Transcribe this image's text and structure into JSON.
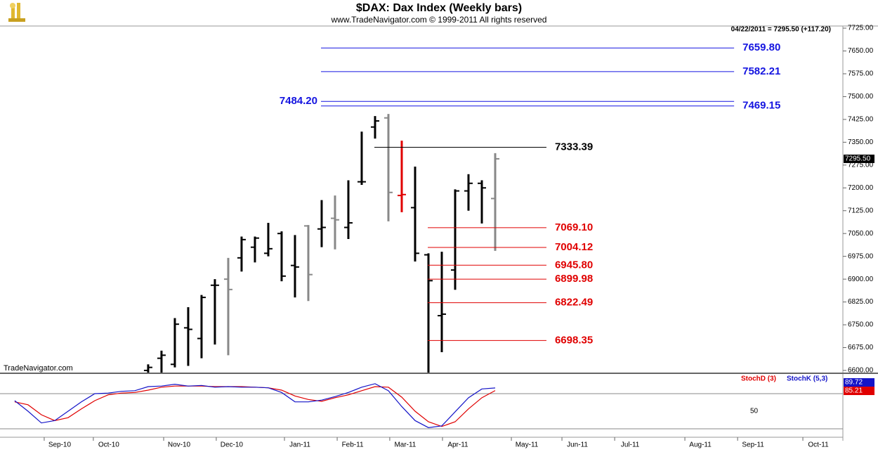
{
  "chart_data": [
    {
      "type": "ohlc",
      "title": "$DAX:  Dax Index  (Weekly bars)",
      "subtitle": "www.TradeNavigator.com © 1999-2011 All rights reserved",
      "info": "04/22/2011 = 7295.50 (+117.20)",
      "watermark": "TradeNavigator.com",
      "xlim": [
        -11.1,
        52.05
      ],
      "ylim": [
        6593,
        7732
      ],
      "yticks": [
        {
          "value": 6600,
          "label": "6600.00"
        },
        {
          "value": 6675,
          "label": "6675.00"
        },
        {
          "value": 6750,
          "label": "6750.00"
        },
        {
          "value": 6825,
          "label": "6825.00"
        },
        {
          "value": 6900,
          "label": "6900.00"
        },
        {
          "value": 6975,
          "label": "6975.00"
        },
        {
          "value": 7050,
          "label": "7050.00"
        },
        {
          "value": 7125,
          "label": "7125.00"
        },
        {
          "value": 7200,
          "label": "7200.00"
        },
        {
          "value": 7275,
          "label": "7275.00"
        },
        {
          "value": 7350,
          "label": "7350.00"
        },
        {
          "value": 7425,
          "label": "7425.00"
        },
        {
          "value": 7500,
          "label": "7500.00"
        },
        {
          "value": 7575,
          "label": "7575.00"
        },
        {
          "value": 7650,
          "label": "7650.00"
        },
        {
          "value": 7725,
          "label": "7725.00"
        }
      ],
      "x": [
        0,
        1,
        2,
        3,
        4,
        5,
        6,
        7,
        8,
        9,
        10,
        11,
        12,
        13,
        14,
        15,
        16,
        17,
        18,
        19,
        20,
        21,
        22,
        23,
        24,
        25,
        26
      ],
      "open": [
        6600,
        6640,
        6620,
        6740,
        6705,
        6880,
        6900,
        6970,
        7005,
        6985,
        7050,
        6945,
        7075,
        7065,
        7100,
        7070,
        7220,
        7400,
        7430,
        7175,
        7135,
        6980,
        6780,
        6930,
        7190,
        7215,
        7165
      ],
      "high": [
        6620,
        6665,
        6772,
        6808,
        6848,
        6900,
        6970,
        7040,
        7040,
        7085,
        7057,
        7045,
        7078,
        7160,
        7175,
        7225,
        7385,
        7436,
        7443,
        7355,
        7270,
        6985,
        6990,
        7195,
        7245,
        7225,
        7314
      ],
      "low": [
        6570,
        6580,
        6610,
        6615,
        6640,
        6685,
        6650,
        6925,
        6955,
        6975,
        6893,
        6840,
        6828,
        7005,
        6998,
        7032,
        7210,
        7362,
        7090,
        7120,
        6958,
        6550,
        6660,
        6865,
        7125,
        7083,
        6993
      ],
      "close": [
        6610,
        6650,
        6752,
        6735,
        6840,
        6880,
        6866,
        7030,
        7035,
        7000,
        6910,
        6940,
        6915,
        7070,
        7095,
        7085,
        7220,
        7420,
        7185,
        7178,
        6985,
        6895,
        6785,
        7190,
        7215,
        7200,
        7295.5
      ],
      "last_close_label": "7295.50",
      "colors": [
        "#000000",
        "#000000",
        "#000000",
        "#000000",
        "#000000",
        "#000000",
        "#888888",
        "#000000",
        "#000000",
        "#000000",
        "#000000",
        "#000000",
        "#888888",
        "#000000",
        "#888888",
        "#000000",
        "#000000",
        "#000000",
        "#888888",
        "#e00000",
        "#000000",
        "#000000",
        "#000000",
        "#000000",
        "#000000",
        "#000000",
        "#888888"
      ],
      "levels": [
        {
          "value": 7659.8,
          "label": "7659.80",
          "color": "#1414e0",
          "x": [
            12.95,
            43.9
          ],
          "label_side": "right"
        },
        {
          "value": 7582.21,
          "label": "7582.21",
          "color": "#1414e0",
          "x": [
            12.95,
            43.9
          ],
          "label_side": "right"
        },
        {
          "value": 7484.2,
          "label": "7484.20",
          "color": "#1414e0",
          "x": [
            12.95,
            43.9
          ],
          "label_side": "left"
        },
        {
          "value": 7469.15,
          "label": "7469.15",
          "color": "#1414e0",
          "x": [
            12.95,
            43.9
          ],
          "label_side": "right"
        },
        {
          "value": 7333.39,
          "label": "7333.39",
          "color": "#000000",
          "x": [
            16.95,
            29.84
          ],
          "label_side": "right"
        },
        {
          "value": 7069.1,
          "label": "7069.10",
          "color": "#e00000",
          "x": [
            20.95,
            29.84
          ],
          "label_side": "right"
        },
        {
          "value": 7004.12,
          "label": "7004.12",
          "color": "#e00000",
          "x": [
            20.95,
            29.84
          ],
          "label_side": "right"
        },
        {
          "value": 6945.8,
          "label": "6945.80",
          "color": "#e00000",
          "x": [
            20.95,
            29.84
          ],
          "label_side": "right"
        },
        {
          "value": 6899.98,
          "label": "6899.98",
          "color": "#e00000",
          "x": [
            20.95,
            29.84
          ],
          "label_side": "right"
        },
        {
          "value": 6822.49,
          "label": "6822.49",
          "color": "#e00000",
          "x": [
            20.95,
            29.84
          ],
          "label_side": "right"
        },
        {
          "value": 6698.35,
          "label": "6698.35",
          "color": "#e00000",
          "x": [
            20.95,
            29.84
          ],
          "label_side": "right"
        }
      ]
    },
    {
      "type": "line",
      "xlim": [
        -11.1,
        52.05
      ],
      "ylim": [
        5.6,
        113.6
      ],
      "yticks": [
        50
      ],
      "reference_lines": [
        20,
        80
      ],
      "xticks": [
        {
          "value": -6.63,
          "label": "Sep-10"
        },
        {
          "value": -2.95,
          "label": "Oct-10"
        },
        {
          "value": 2.32,
          "label": "Nov-10"
        },
        {
          "value": 6.26,
          "label": "Dec-10"
        },
        {
          "value": 11.37,
          "label": "Jan-11"
        },
        {
          "value": 15.32,
          "label": "Feb-11"
        },
        {
          "value": 19.26,
          "label": "Mar-11"
        },
        {
          "value": 23.21,
          "label": "Apr-11"
        },
        {
          "value": 28.37,
          "label": "May-11"
        },
        {
          "value": 32.16,
          "label": "Jun-11"
        },
        {
          "value": 36.11,
          "label": "Jul-11"
        },
        {
          "value": 41.37,
          "label": "Aug-11"
        },
        {
          "value": 45.32,
          "label": "Sep-11"
        },
        {
          "value": 50.21,
          "label": "Oct-11"
        }
      ],
      "x": [
        -10,
        -9,
        -8,
        -7,
        -6,
        -5,
        -4,
        -3,
        -2,
        -1,
        0,
        1,
        2,
        3,
        4,
        5,
        6,
        7,
        8,
        9,
        10,
        11,
        12,
        13,
        14,
        15,
        16,
        17,
        18,
        19,
        20,
        21,
        22,
        23,
        24,
        25,
        26
      ],
      "series": [
        {
          "name": "StochD (3)",
          "color": "#e00000",
          "values": [
            66,
            61,
            44,
            34,
            39,
            54,
            68,
            78,
            81,
            82,
            86,
            91,
            93,
            93,
            93,
            92,
            92,
            92,
            91,
            90,
            86,
            76,
            70,
            67,
            73,
            78,
            85,
            92,
            91,
            74,
            50,
            32,
            24,
            32,
            54,
            73,
            85.21
          ]
        },
        {
          "name": "StochK (5,3)",
          "color": "#1414c8",
          "values": [
            68,
            50,
            30,
            34,
            50,
            66,
            80,
            81,
            84,
            85,
            92,
            93,
            96,
            93,
            94,
            91,
            92,
            91,
            91,
            90,
            82,
            66,
            66,
            69,
            75,
            82,
            91,
            97,
            85,
            58,
            34,
            22,
            25,
            49,
            73,
            88,
            89.72
          ]
        }
      ]
    }
  ]
}
